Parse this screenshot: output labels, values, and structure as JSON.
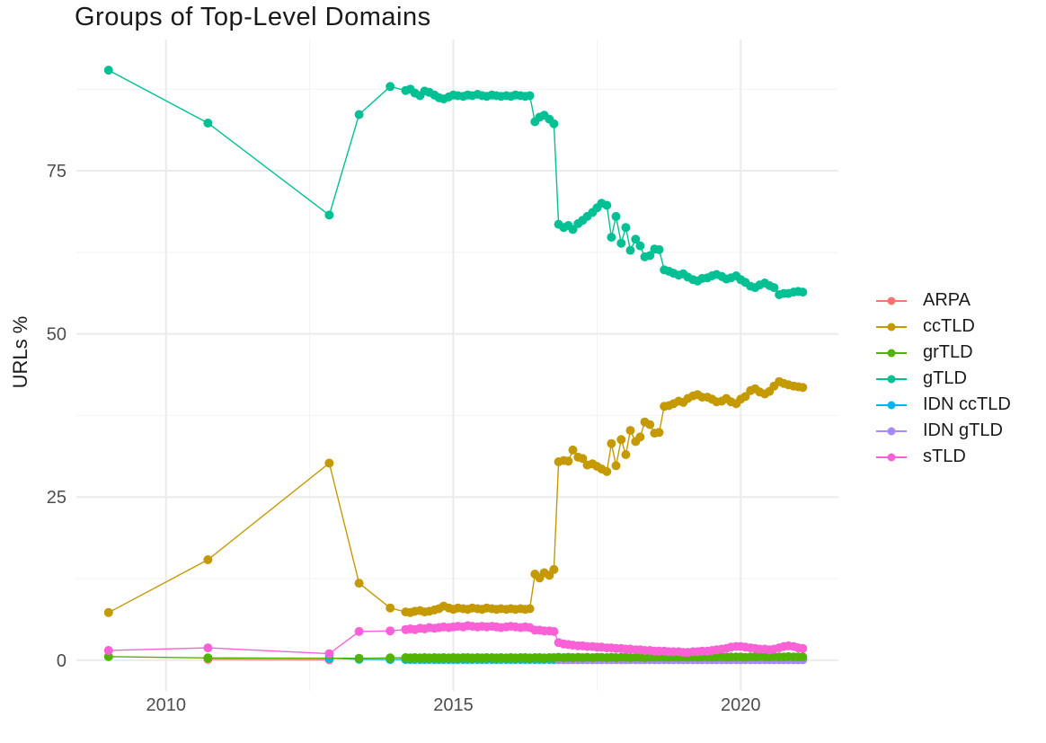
{
  "chart_data": {
    "type": "line",
    "title": "Groups of Top-Level Domains",
    "ylabel": "URLs %",
    "xlabel": "",
    "grid": true,
    "legend_position": "right",
    "x_axis": {
      "range": [
        2008.44,
        2021.7
      ],
      "ticks": [
        2010,
        2015,
        2020
      ],
      "tick_labels": [
        "2010",
        "2015",
        "2020"
      ],
      "minor_ticks": [
        2012.5,
        2017.5
      ]
    },
    "y_axis": {
      "range": [
        -4.7,
        95.1
      ],
      "ticks": [
        0,
        25,
        50,
        75
      ],
      "tick_labels": [
        "0",
        "25",
        "50",
        "75"
      ],
      "minor_ticks": [
        12.5,
        37.5,
        62.5,
        87.5
      ]
    },
    "theme": {
      "background": "#FFFFFF",
      "grid_major": "#EBEBEB",
      "grid_minor": "#F3F3F3",
      "axis_text": "#4D4D4D",
      "text": "#1A1A1A"
    },
    "legend_order": [
      "ARPA",
      "ccTLD",
      "grTLD",
      "gTLD",
      "IDN ccTLD",
      "IDN gTLD",
      "sTLD"
    ],
    "draw_order": [
      "ARPA",
      "ccTLD",
      "IDN ccTLD",
      "IDN gTLD",
      "grTLD",
      "gTLD",
      "sTLD"
    ],
    "dense_x": [
      2013.9,
      2014.17,
      2014.25,
      2014.33,
      2014.42,
      2014.5,
      2014.58,
      2014.67,
      2014.75,
      2014.83,
      2014.92,
      2015.0,
      2015.08,
      2015.17,
      2015.25,
      2015.33,
      2015.42,
      2015.5,
      2015.58,
      2015.67,
      2015.75,
      2015.83,
      2015.92,
      2016.0,
      2016.08,
      2016.17,
      2016.25,
      2016.33,
      2016.42,
      2016.5,
      2016.58,
      2016.67,
      2016.75,
      2016.83,
      2016.92,
      2017.0,
      2017.08,
      2017.17,
      2017.25,
      2017.33,
      2017.42,
      2017.5,
      2017.58,
      2017.67,
      2017.75,
      2017.83,
      2017.92,
      2018.0,
      2018.08,
      2018.17,
      2018.25,
      2018.33,
      2018.42,
      2018.5,
      2018.58,
      2018.67,
      2018.75,
      2018.83,
      2018.92,
      2019.0,
      2019.08,
      2019.17,
      2019.25,
      2019.33,
      2019.42,
      2019.5,
      2019.58,
      2019.67,
      2019.75,
      2019.83,
      2019.92,
      2020.0,
      2020.08,
      2020.17,
      2020.25,
      2020.33,
      2020.42,
      2020.5,
      2020.58,
      2020.67,
      2020.75,
      2020.83,
      2020.92,
      2021.0,
      2021.08
    ],
    "series": [
      {
        "name": "ARPA",
        "color": "#F8766D",
        "x_sparse": [
          2010.73,
          2012.84
        ],
        "y_sparse": [
          0.15,
          0.08
        ]
      },
      {
        "name": "ccTLD",
        "color": "#C49A00",
        "x_sparse": [
          2009.0,
          2010.73,
          2012.84,
          2013.36
        ],
        "y_sparse": [
          7.3,
          15.4,
          30.2,
          11.8
        ],
        "y_dense": [
          8.0,
          7.4,
          7.3,
          7.5,
          7.6,
          7.4,
          7.5,
          7.7,
          7.9,
          8.3,
          8.0,
          7.8,
          8.0,
          7.9,
          7.8,
          8.0,
          7.9,
          7.8,
          8.0,
          7.9,
          7.8,
          7.9,
          7.8,
          7.9,
          7.8,
          7.9,
          7.8,
          7.9,
          13.2,
          12.6,
          13.4,
          13.0,
          13.9,
          30.4,
          30.6,
          30.5,
          32.2,
          31.1,
          30.9,
          29.9,
          30.1,
          29.7,
          29.3,
          28.9,
          33.2,
          29.8,
          33.8,
          31.5,
          35.2,
          33.5,
          34.2,
          36.5,
          36.1,
          34.8,
          34.9,
          38.9,
          39.0,
          39.3,
          39.7,
          39.5,
          40.1,
          40.5,
          40.7,
          40.3,
          40.3,
          40.0,
          39.6,
          39.7,
          40.1,
          39.6,
          39.3,
          40.0,
          40.4,
          41.3,
          41.6,
          41.1,
          40.8,
          41.2,
          42.0,
          42.7,
          42.4,
          42.2,
          42.0,
          41.9,
          41.8
        ]
      },
      {
        "name": "grTLD",
        "color": "#53B400",
        "x_sparse": [
          2009.0,
          2010.73,
          2013.36
        ],
        "y_sparse": [
          0.55,
          0.35,
          0.3
        ],
        "y_dense": [
          0.35,
          0.4,
          0.35,
          0.4,
          0.35,
          0.4,
          0.35,
          0.4,
          0.35,
          0.4,
          0.35,
          0.4,
          0.35,
          0.4,
          0.4,
          0.35,
          0.4,
          0.35,
          0.4,
          0.4,
          0.35,
          0.4,
          0.35,
          0.4,
          0.35,
          0.4,
          0.4,
          0.35,
          0.4,
          0.4,
          0.35,
          0.4,
          0.4,
          0.45,
          0.4,
          0.45,
          0.4,
          0.45,
          0.4,
          0.45,
          0.4,
          0.45,
          0.45,
          0.4,
          0.45,
          0.4,
          0.45,
          0.45,
          0.4,
          0.45,
          0.45,
          0.4,
          0.45,
          0.45,
          0.5,
          0.45,
          0.45,
          0.5,
          0.45,
          0.5,
          0.45,
          0.5,
          0.45,
          0.5,
          0.5,
          0.45,
          0.5,
          0.5,
          0.45,
          0.5,
          0.5,
          0.5,
          0.45,
          0.5,
          0.5,
          0.55,
          0.5,
          0.5,
          0.55,
          0.5,
          0.5,
          0.55,
          0.5,
          0.5,
          0.5
        ]
      },
      {
        "name": "gTLD",
        "color": "#00C094",
        "x_sparse": [
          2009.0,
          2010.73,
          2012.84,
          2013.36
        ],
        "y_sparse": [
          90.4,
          82.3,
          68.2,
          83.6
        ],
        "y_dense": [
          87.9,
          87.3,
          87.5,
          86.9,
          86.5,
          87.2,
          87.0,
          86.6,
          86.2,
          86.0,
          86.3,
          86.6,
          86.5,
          86.4,
          86.6,
          86.5,
          86.7,
          86.5,
          86.4,
          86.6,
          86.5,
          86.4,
          86.5,
          86.4,
          86.6,
          86.5,
          86.4,
          86.5,
          82.5,
          83.2,
          83.5,
          82.9,
          82.2,
          66.8,
          66.3,
          66.6,
          66.0,
          66.9,
          67.4,
          68.0,
          68.6,
          69.3,
          70.0,
          69.7,
          64.8,
          68.0,
          63.9,
          66.3,
          62.8,
          64.5,
          63.5,
          61.8,
          62.0,
          63.0,
          62.9,
          59.8,
          59.6,
          59.3,
          59.0,
          59.2,
          58.7,
          58.3,
          58.1,
          58.5,
          58.6,
          58.9,
          59.1,
          58.8,
          58.4,
          58.6,
          58.9,
          58.3,
          57.9,
          57.3,
          57.1,
          57.5,
          57.8,
          57.4,
          57.1,
          56.0,
          56.2,
          56.2,
          56.4,
          56.5,
          56.4
        ]
      },
      {
        "name": "IDN ccTLD",
        "color": "#00B6EB",
        "x_sparse": [
          2012.84,
          2013.36
        ],
        "y_sparse": [
          0.3,
          0.15
        ],
        "y_dense_const": 0.1
      },
      {
        "name": "IDN gTLD",
        "color": "#A58AFF",
        "dense_start_index": 33,
        "y_dense_const": 0.08
      },
      {
        "name": "sTLD",
        "color": "#FB61D7",
        "x_sparse": [
          2009.0,
          2010.73,
          2012.84,
          2013.36
        ],
        "y_sparse": [
          1.5,
          1.9,
          1.0,
          4.4
        ],
        "y_dense": [
          4.5,
          4.7,
          4.8,
          4.7,
          4.9,
          4.8,
          5.0,
          4.9,
          5.0,
          5.1,
          5.0,
          5.1,
          5.2,
          5.1,
          5.3,
          5.2,
          5.1,
          5.2,
          5.1,
          5.2,
          5.1,
          5.0,
          5.1,
          5.2,
          5.1,
          5.0,
          5.1,
          5.0,
          4.6,
          4.6,
          4.5,
          4.5,
          4.4,
          2.7,
          2.5,
          2.4,
          2.3,
          2.2,
          2.2,
          2.1,
          2.1,
          2.0,
          2.0,
          1.9,
          1.9,
          1.8,
          1.8,
          1.7,
          1.7,
          1.6,
          1.6,
          1.5,
          1.5,
          1.4,
          1.4,
          1.4,
          1.3,
          1.3,
          1.3,
          1.2,
          1.2,
          1.3,
          1.3,
          1.4,
          1.4,
          1.5,
          1.6,
          1.7,
          1.8,
          2.0,
          2.1,
          2.1,
          2.0,
          1.9,
          1.8,
          1.7,
          1.7,
          1.6,
          1.7,
          1.9,
          2.1,
          2.2,
          2.1,
          1.9,
          1.8
        ]
      }
    ]
  }
}
